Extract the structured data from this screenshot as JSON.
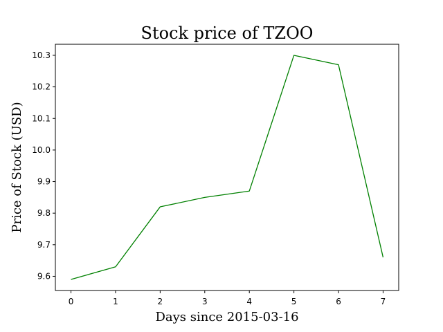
{
  "chart_data": {
    "type": "line",
    "title": "Stock price of TZOO",
    "xlabel": "Days since 2015-03-16",
    "ylabel": "Price of Stock (USD)",
    "x": [
      0,
      1,
      2,
      3,
      4,
      5,
      6,
      7
    ],
    "series": [
      {
        "values": [
          9.59,
          9.63,
          9.82,
          9.85,
          9.87,
          10.3,
          10.27,
          9.66
        ],
        "color": "#008000"
      }
    ],
    "xlim": [
      -0.35,
      7.35
    ],
    "ylim": [
      9.555,
      10.335
    ],
    "xticks": [
      0,
      1,
      2,
      3,
      4,
      5,
      6,
      7
    ],
    "yticks": [
      9.6,
      9.7,
      9.8,
      9.9,
      10.0,
      10.1,
      10.2,
      10.3
    ],
    "xtick_labels": [
      "0",
      "1",
      "2",
      "3",
      "4",
      "5",
      "6",
      "7"
    ],
    "ytick_labels": [
      "9.6",
      "9.7",
      "9.8",
      "9.9",
      "10.0",
      "10.1",
      "10.2",
      "10.3"
    ],
    "grid": false,
    "legend": false
  }
}
